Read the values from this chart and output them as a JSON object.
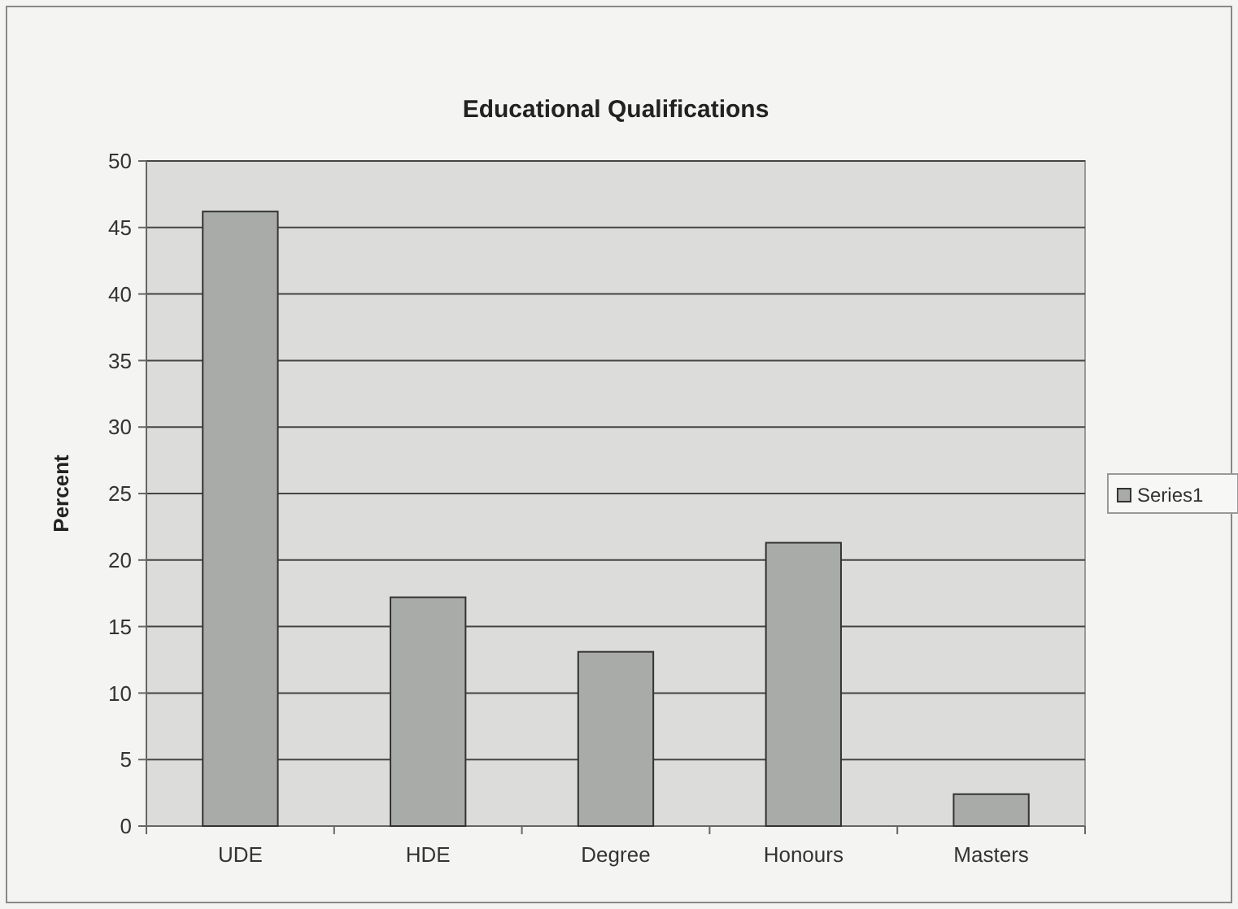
{
  "chart_data": {
    "type": "bar",
    "title": "Educational Qualifications",
    "ylabel": "Percent",
    "categories": [
      "UDE",
      "HDE",
      "Degree",
      "Honours",
      "Masters"
    ],
    "series": [
      {
        "name": "Series1",
        "color": "#a9aba9",
        "values": [
          46.2,
          17.2,
          13.1,
          21.3,
          2.4
        ]
      }
    ],
    "ylim": [
      0,
      50
    ],
    "yticks": [
      0,
      5,
      10,
      15,
      20,
      25,
      30,
      35,
      40,
      45,
      50
    ],
    "grid": "y",
    "legend": "right"
  }
}
